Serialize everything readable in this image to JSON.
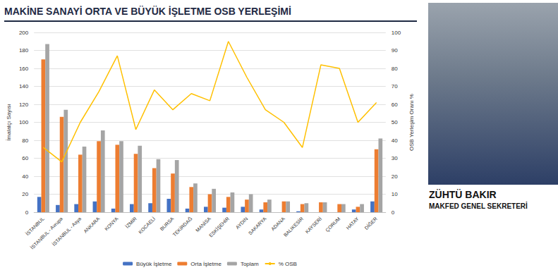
{
  "chart_data": {
    "type": "bar",
    "title": "MAKİNE SANAYİ ORTA VE BÜYÜK İŞLETME OSB YERLEŞİMİ",
    "y_label": "İmalatçı Sayısı",
    "y2_label": "OSB Yerleşim Oranı %",
    "categories": [
      "İSTANBUL",
      "İSTANBUL - Avrupa",
      "İSTANBUL - Asya",
      "ANKARA",
      "KONYA",
      "İZMİR",
      "KOCAELİ",
      "BURSA",
      "TEKİRDAĞ",
      "MANİSA",
      "ESKİŞEHİR",
      "AYDIN",
      "SAKARYA",
      "ADANA",
      "BALIKESİR",
      "KAYSERİ",
      "ÇORUM",
      "HATAY",
      "DİĞER"
    ],
    "series": [
      {
        "name": "Büyük İşletme",
        "type": "bar",
        "color": "#4472c4",
        "values": [
          17,
          8,
          9,
          12,
          4,
          9,
          10,
          15,
          4,
          6,
          5,
          6,
          3,
          0,
          1,
          0,
          0,
          3,
          12
        ]
      },
      {
        "name": "Orta İşletme",
        "type": "bar",
        "color": "#ed7d31",
        "values": [
          170,
          106,
          64,
          79,
          75,
          65,
          49,
          43,
          28,
          20,
          17,
          14,
          11,
          12,
          9,
          11,
          9,
          6,
          70
        ]
      },
      {
        "name": "Toplam",
        "type": "bar",
        "color": "#a5a5a5",
        "values": [
          187,
          114,
          73,
          91,
          79,
          74,
          59,
          58,
          32,
          26,
          22,
          20,
          14,
          12,
          10,
          11,
          9,
          9,
          82
        ]
      },
      {
        "name": "% OSB",
        "type": "line",
        "axis": "y2",
        "color": "#ffc000",
        "values": [
          36,
          28,
          50,
          67,
          87,
          46,
          68,
          57,
          66,
          62,
          95,
          75,
          57,
          50,
          36,
          82,
          80,
          50,
          61
        ]
      }
    ],
    "ylim": [
      0,
      200
    ],
    "yticks": [
      0,
      20,
      40,
      60,
      80,
      100,
      120,
      140,
      160,
      180,
      200
    ],
    "y2lim": [
      0,
      100
    ],
    "y2ticks": [
      0,
      10,
      20,
      30,
      40,
      50,
      60,
      70,
      80,
      90,
      100
    ],
    "grid": true,
    "legend": "bottom"
  },
  "caption": {
    "name": "ZÜHTÜ BAKIR",
    "role": "MAKFED GENEL SEKRETERİ"
  }
}
